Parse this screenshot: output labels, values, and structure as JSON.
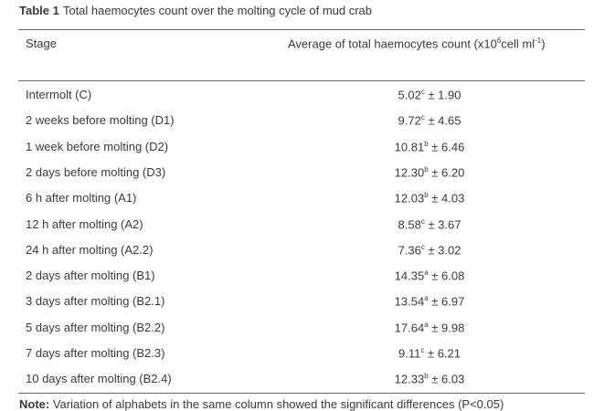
{
  "table": {
    "label": "Table 1",
    "caption": "Total haemocytes count over the molting cycle of mud crab",
    "headers": {
      "stage": "Stage",
      "value_pre": "Average of total haemocytes count (x10",
      "value_exp1": "6",
      "value_mid": "cell ml",
      "value_exp2": "-1",
      "value_post": ")"
    },
    "rows": [
      {
        "stage": "Intermolt (C)",
        "mean": "5.02",
        "group": "c",
        "sd": "± 1.90"
      },
      {
        "stage": "2 weeks before molting (D1)",
        "mean": "9.72",
        "group": "c",
        "sd": "± 4.65"
      },
      {
        "stage": "1 week before molting (D2)",
        "mean": "10.81",
        "group": "b",
        "sd": "± 6.46"
      },
      {
        "stage": "2 days before molting (D3)",
        "mean": "12.30",
        "group": "b",
        "sd": "± 6.20"
      },
      {
        "stage": "6 h after molting (A1)",
        "mean": "12.03",
        "group": "b",
        "sd": "± 4.03"
      },
      {
        "stage": "12 h after molting (A2)",
        "mean": "8.58",
        "group": "c",
        "sd": "± 3.67"
      },
      {
        "stage": "24 h after molting (A2.2)",
        "mean": "7.36",
        "group": "c",
        "sd": "± 3.02"
      },
      {
        "stage": "2 days after molting (B1)",
        "mean": "14.35",
        "group": "a",
        "sd": "± 6.08"
      },
      {
        "stage": "3 days after molting (B2.1)",
        "mean": "13.54",
        "group": "a",
        "sd": "± 6.97"
      },
      {
        "stage": "5 days after molting (B2.2)",
        "mean": "17.64",
        "group": "a",
        "sd": "± 9.98"
      },
      {
        "stage": "7 days after molting (B2.3)",
        "mean": "9.11",
        "group": "c",
        "sd": "± 6.21"
      },
      {
        "stage": "10 days after molting (B2.4)",
        "mean": "12.33",
        "group": "b",
        "sd": "± 6.03"
      }
    ],
    "note_label": "Note:",
    "note": "Variation of alphabets in the same column showed the significant differences (P<0.05)"
  }
}
